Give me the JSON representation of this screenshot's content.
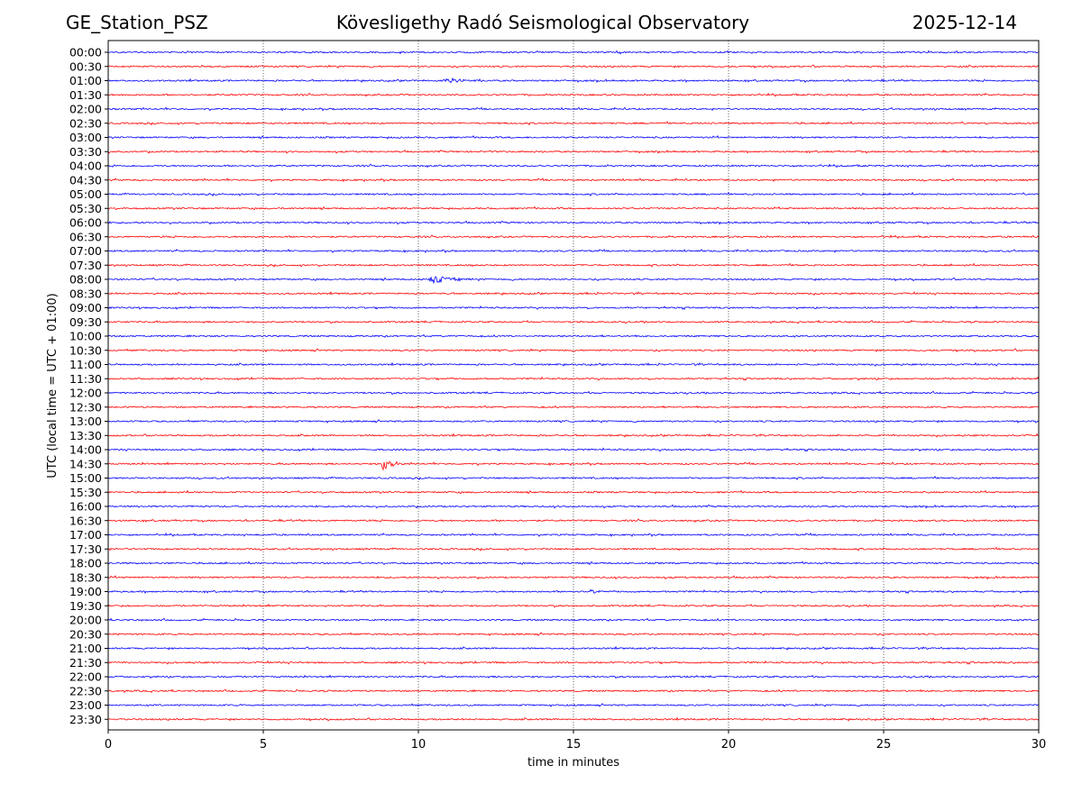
{
  "header": {
    "station": "GE_Station_PSZ",
    "observatory": "Kövesligethy Radó Seismological Observatory",
    "date": "2025-12-14"
  },
  "chart_data": {
    "type": "line",
    "title": "Kövesligethy Radó Seismological Observatory",
    "xlabel": "time in minutes",
    "ylabel": "UTC (local time = UTC + 01:00)",
    "xlim": [
      0,
      30
    ],
    "xticks": [
      0,
      5,
      10,
      15,
      20,
      25,
      30
    ],
    "grid": "vertical dotted at 5-minute ticks",
    "trace_colors": [
      "#0000ff",
      "#ff0000"
    ],
    "rows": [
      "00:00",
      "00:30",
      "01:00",
      "01:30",
      "02:00",
      "02:30",
      "03:00",
      "03:30",
      "04:00",
      "04:30",
      "05:00",
      "05:30",
      "06:00",
      "06:30",
      "07:00",
      "07:30",
      "08:00",
      "08:30",
      "09:00",
      "09:30",
      "10:00",
      "10:30",
      "11:00",
      "11:30",
      "12:00",
      "12:30",
      "13:00",
      "13:30",
      "14:00",
      "14:30",
      "15:00",
      "15:30",
      "16:00",
      "16:30",
      "17:00",
      "17:30",
      "18:00",
      "18:30",
      "19:00",
      "19:30",
      "20:00",
      "20:30",
      "21:00",
      "21:30",
      "22:00",
      "22:30",
      "23:00",
      "23:30"
    ],
    "events": [
      {
        "row": "01:00",
        "start_min": 10.8,
        "duration_min": 1.2,
        "amplitude": "small"
      },
      {
        "row": "08:00",
        "start_min": 10.3,
        "duration_min": 1.6,
        "amplitude": "medium"
      },
      {
        "row": "14:30",
        "start_min": 8.8,
        "duration_min": 0.9,
        "amplitude": "large"
      },
      {
        "row": "19:00",
        "start_min": 15.5,
        "duration_min": 0.5,
        "amplitude": "small"
      }
    ]
  }
}
